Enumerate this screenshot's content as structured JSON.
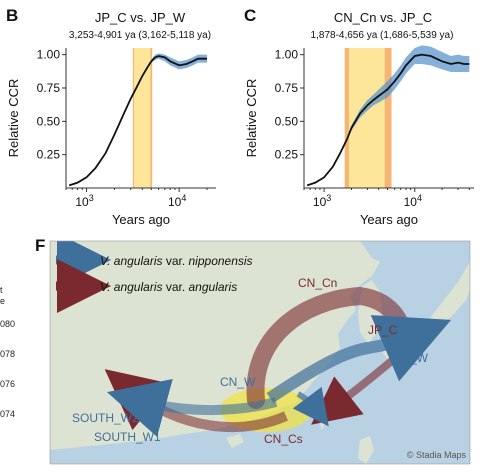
{
  "panels": {
    "b": {
      "letter": "B",
      "title": "JP_C vs. JP_W",
      "subtitle": "3,253-4,901 ya (3,162-5,118 ya)"
    },
    "c": {
      "letter": "C",
      "title": "CN_Cn vs. JP_C",
      "subtitle": "1,878-4,656 ya (1,686-5,539 ya)"
    },
    "f": {
      "letter": "F",
      "legend": [
        {
          "prefix": "V. angularis",
          "suffix": " var. ",
          "variety": "nipponensis",
          "color": "#3f6f9b"
        },
        {
          "prefix": "V. angularis",
          "suffix": " var. ",
          "variety": "angularis",
          "color": "#7a2a2e"
        }
      ],
      "labels": {
        "cn_cn": "CN_Cn",
        "jp_c": "JP_C",
        "jp_w": "JP_W",
        "cn_w": "CN_W",
        "south_w2": "SOUTH_W2",
        "south_w1": "SOUTH_W1",
        "cn_cs": "CN_Cs"
      },
      "credit": "© Stadia Maps",
      "colors": {
        "water": "#b9d2e3",
        "land": "#dde3d3",
        "nipponensis": "#3f6f9b",
        "angularis": "#7a2a2e",
        "region": "#f3e23a"
      }
    },
    "left_edge": {
      "label_a": "t",
      "label_b": "e",
      "ticks": [
        "080",
        "078",
        "076",
        "074"
      ]
    }
  },
  "chart_data": [
    {
      "type": "line",
      "panel": "B",
      "title": "JP_C vs. JP_W",
      "subtitle": "3,253-4,901 ya (3,162-5,118 ya)",
      "xlabel": "Years ago",
      "ylabel": "Relative CCR",
      "xscale": "log",
      "xlim": [
        600,
        25000
      ],
      "ylim": [
        0,
        1.05
      ],
      "xticks": [
        {
          "value": 1000,
          "base": "10",
          "exp": "3"
        },
        {
          "value": 10000,
          "base": "10",
          "exp": "4"
        }
      ],
      "yticks": [
        "0.25",
        "0.50",
        "0.75",
        "1.00"
      ],
      "shaded_range_outer": [
        3162,
        5118
      ],
      "shaded_range_inner": [
        3253,
        4901
      ],
      "colors": {
        "line": "#111111",
        "band": "#5b96cc",
        "outer": "#f3a85b",
        "inner": "#fde59a"
      },
      "x": [
        650,
        800,
        1000,
        1250,
        1600,
        2000,
        2500,
        3000,
        3500,
        4000,
        4500,
        5000,
        5500,
        6000,
        7000,
        8000,
        10000,
        12000,
        14000,
        16000,
        18000,
        20000
      ],
      "y": [
        0.02,
        0.04,
        0.08,
        0.15,
        0.26,
        0.4,
        0.55,
        0.67,
        0.76,
        0.84,
        0.9,
        0.95,
        0.98,
        0.99,
        0.98,
        0.95,
        0.92,
        0.93,
        0.95,
        0.97,
        0.97,
        0.97
      ],
      "band_lower": [
        0.02,
        0.04,
        0.08,
        0.15,
        0.26,
        0.4,
        0.55,
        0.67,
        0.76,
        0.84,
        0.89,
        0.94,
        0.96,
        0.97,
        0.95,
        0.92,
        0.89,
        0.9,
        0.92,
        0.94,
        0.94,
        0.94
      ],
      "band_upper": [
        0.02,
        0.04,
        0.08,
        0.15,
        0.26,
        0.4,
        0.55,
        0.67,
        0.76,
        0.84,
        0.91,
        0.96,
        1.0,
        1.01,
        1.0,
        0.98,
        0.95,
        0.96,
        0.98,
        1.0,
        1.0,
        1.0
      ]
    },
    {
      "type": "line",
      "panel": "C",
      "title": "CN_Cn vs. JP_C",
      "subtitle": "1,878-4,656 ya (1,686-5,539 ya)",
      "xlabel": "Years ago",
      "ylabel": "Relative CCR",
      "xscale": "log",
      "xlim": [
        600,
        45000
      ],
      "ylim": [
        0,
        1.05
      ],
      "xticks": [
        {
          "value": 1000,
          "base": "10",
          "exp": "3"
        },
        {
          "value": 10000,
          "base": "10",
          "exp": "4"
        }
      ],
      "yticks": [
        "0.25",
        "0.50",
        "0.75",
        "1.00"
      ],
      "shaded_range_outer": [
        1686,
        5539
      ],
      "shaded_range_inner": [
        1878,
        4656
      ],
      "colors": {
        "line": "#111111",
        "band": "#5b96cc",
        "outer": "#f3a85b",
        "inner": "#fde59a"
      },
      "x": [
        650,
        800,
        1000,
        1250,
        1500,
        1800,
        2000,
        2500,
        3000,
        3500,
        4000,
        5000,
        6000,
        7000,
        8000,
        10000,
        12000,
        15000,
        20000,
        25000,
        30000,
        35000,
        40000
      ],
      "y": [
        0.02,
        0.04,
        0.08,
        0.16,
        0.26,
        0.37,
        0.45,
        0.56,
        0.62,
        0.66,
        0.69,
        0.74,
        0.8,
        0.86,
        0.92,
        0.99,
        1.0,
        0.99,
        0.95,
        0.93,
        0.94,
        0.93,
        0.93
      ],
      "band_lower": [
        0.02,
        0.04,
        0.08,
        0.16,
        0.25,
        0.36,
        0.43,
        0.53,
        0.58,
        0.62,
        0.64,
        0.68,
        0.74,
        0.8,
        0.86,
        0.93,
        0.93,
        0.92,
        0.89,
        0.87,
        0.87,
        0.87,
        0.87
      ],
      "band_upper": [
        0.02,
        0.04,
        0.08,
        0.16,
        0.27,
        0.38,
        0.47,
        0.59,
        0.66,
        0.7,
        0.74,
        0.8,
        0.86,
        0.92,
        0.98,
        1.05,
        1.07,
        1.06,
        1.02,
        0.99,
        1.0,
        0.99,
        0.99
      ]
    }
  ]
}
